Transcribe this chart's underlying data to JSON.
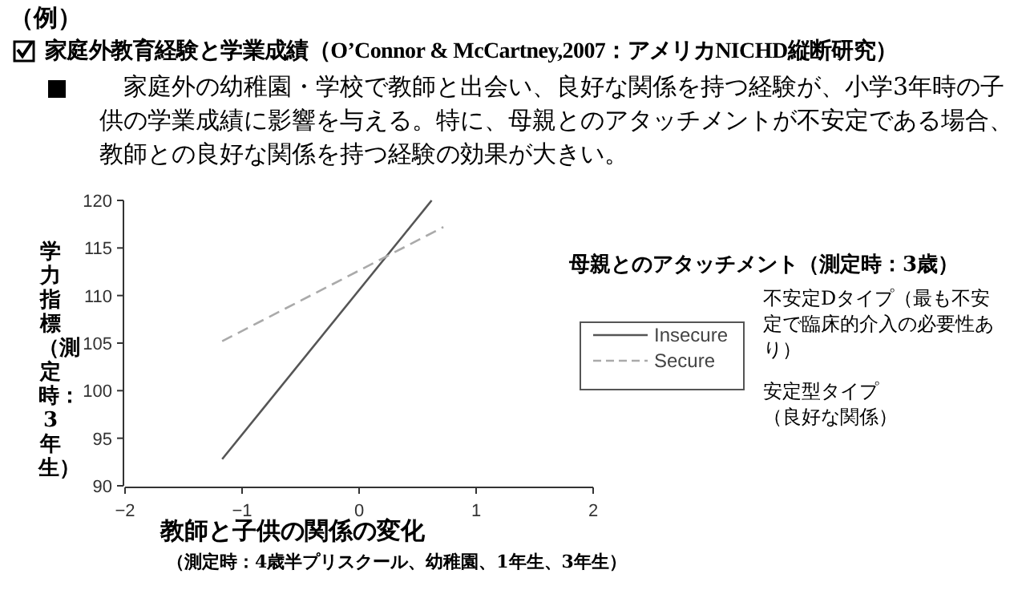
{
  "chart_data": {
    "type": "line",
    "title": "家庭外教育経験と学業成績（O’Connor & McCartney,2007：アメリカNICHD縦断研究）",
    "subtitle": "家庭外の幼稚園・学校で教師と出会い、良好な関係を持つ経験が、小学3年時の子供の学業成績に影響を与える。特に、母親とのアタッチメントが不安定である場合、教師との良好な関係を持つ経験の効果が大きい。",
    "xlabel": "教師と子供の関係の変化",
    "ylabel": "学力指標（測定時：3年生）",
    "legend_title": "母親とのアタッチメント（測定時：3歳）",
    "annotations": [
      "（例）",
      "（測定時：4歳半プリスクール、幼稚園、1年生、3年生）",
      "不安定Dタイプ（最も不安定で臨床的介入の必要性あり）",
      "安定型タイプ（良好な関係）"
    ],
    "series": [
      {
        "name": "Insecure",
        "color": "#555555",
        "line_style": "solid",
        "x": [
          -1.17,
          0.62
        ],
        "values": [
          92.8,
          120
        ]
      },
      {
        "name": "Secure",
        "color": "#aaaaaa",
        "line_style": "dashed",
        "x": [
          -1.17,
          0.72
        ],
        "values": [
          105.2,
          117.2
        ]
      }
    ],
    "xlim": [
      -2,
      2
    ],
    "ylim": [
      90,
      120
    ],
    "xticks": [
      -2,
      -1,
      0,
      1,
      2
    ],
    "yticks": [
      90,
      95,
      100,
      105,
      110,
      115,
      120
    ],
    "grid": false,
    "legend": "right",
    "marker": "none"
  }
}
